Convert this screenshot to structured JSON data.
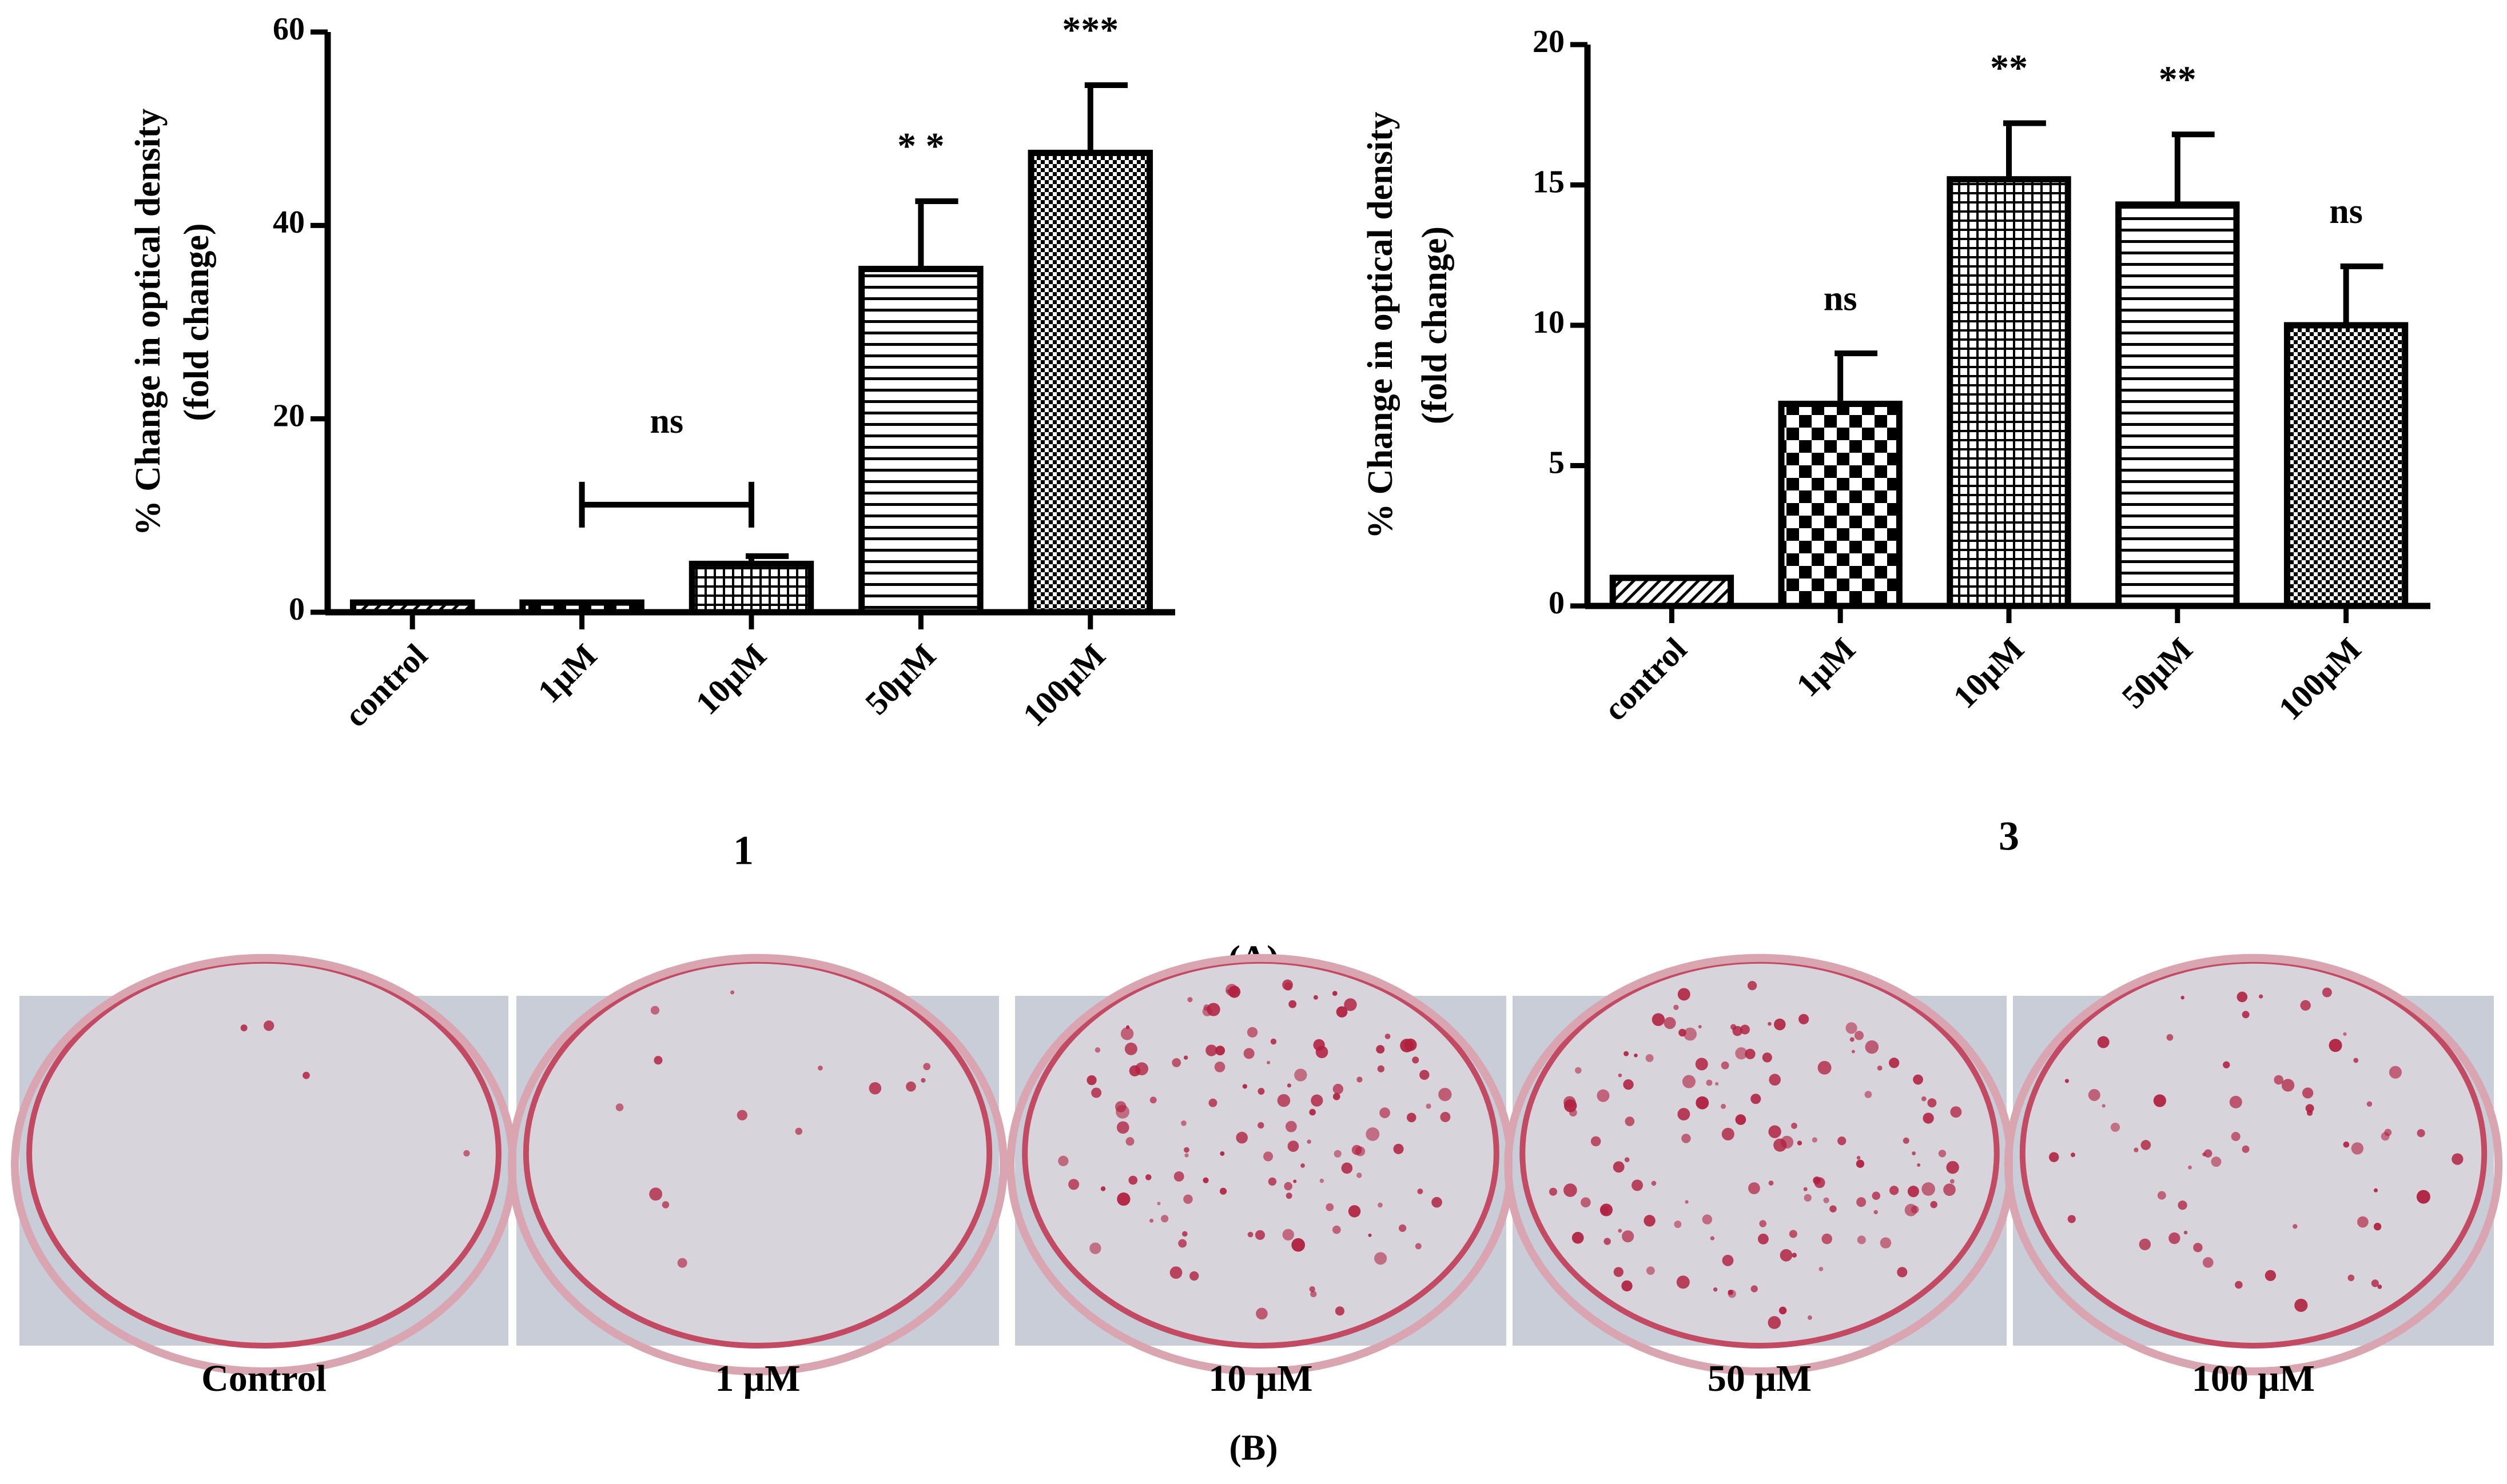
{
  "chart_data": [
    {
      "type": "bar",
      "title": "1",
      "ylabel": [
        "% Change in optical density",
        "(fold change)"
      ],
      "categories": [
        "control",
        "1μM",
        "10μM",
        "50μM",
        "100μM"
      ],
      "values": [
        1,
        1,
        5,
        35.5,
        47.5
      ],
      "errors": [
        0,
        0,
        0.8,
        7,
        7
      ],
      "significance": [
        null,
        null,
        "ns",
        "* *",
        "***"
      ],
      "color": "#000000",
      "ylim": [
        0,
        60
      ],
      "yticks": [
        0,
        20,
        40,
        60
      ]
    },
    {
      "type": "bar",
      "title": "3",
      "ylabel": [
        "% Change in optical density",
        "(fold change)"
      ],
      "categories": [
        "control",
        "1μM",
        "10μM",
        "50μM",
        "100μM"
      ],
      "values": [
        1,
        7.2,
        15.2,
        14.3,
        10
      ],
      "errors": [
        0,
        1.8,
        2,
        2.5,
        2.1
      ],
      "significance": [
        null,
        "ns",
        "**",
        "**",
        "ns"
      ],
      "color": "#000000",
      "ylim": [
        0,
        20
      ],
      "yticks": [
        0,
        5,
        10,
        15,
        20
      ]
    }
  ],
  "panel_labels": [
    "(A)",
    "(B)"
  ],
  "photos": {
    "captions": [
      "Control",
      "1 μM",
      "10 μM",
      "50 μM",
      "100 μM"
    ]
  }
}
